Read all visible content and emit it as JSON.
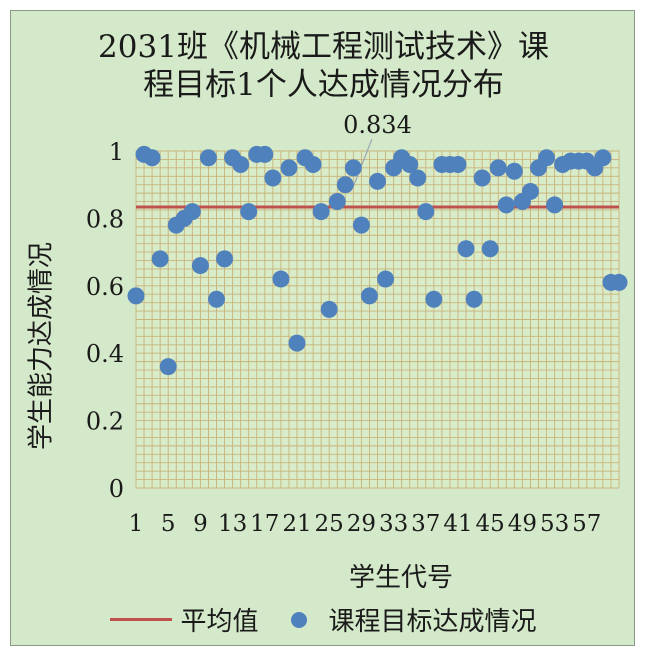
{
  "chart_data": {
    "type": "scatter",
    "title_lines": [
      "2031班《机械工程测试技术》课",
      "程目标1个人达成情况分布"
    ],
    "xlabel": "学生代号",
    "ylabel": "学生能力达成情况",
    "x_tick_labels": [
      "1",
      "5",
      "9",
      "13",
      "17",
      "21",
      "25",
      "29",
      "33",
      "37",
      "41",
      "45",
      "49",
      "53",
      "57"
    ],
    "y_tick_labels": [
      "0",
      "0.2",
      "0.4",
      "0.6",
      "0.8",
      "1"
    ],
    "ylim": [
      0,
      1
    ],
    "xlim": [
      1,
      61
    ],
    "grid": true,
    "legend_position": "bottom",
    "annotation": "0.834",
    "average": {
      "name": "平均值",
      "value": 0.834,
      "color": "#c0504d"
    },
    "series": [
      {
        "name": "课程目标达成情况",
        "color": "#4f81bd",
        "x": [
          1,
          2,
          3,
          4,
          5,
          6,
          7,
          8,
          9,
          10,
          11,
          12,
          13,
          14,
          15,
          16,
          17,
          18,
          19,
          20,
          21,
          22,
          23,
          24,
          25,
          26,
          27,
          28,
          29,
          30,
          31,
          32,
          33,
          34,
          35,
          36,
          37,
          38,
          39,
          40,
          41,
          42,
          43,
          44,
          45,
          46,
          47,
          48,
          49,
          50,
          51,
          52,
          53,
          54,
          55,
          56,
          57,
          58,
          59,
          60,
          61
        ],
        "y": [
          0.57,
          0.99,
          0.98,
          0.68,
          0.36,
          0.78,
          0.8,
          0.82,
          0.66,
          0.98,
          0.56,
          0.68,
          0.98,
          0.96,
          0.82,
          0.99,
          0.99,
          0.92,
          0.62,
          0.95,
          0.43,
          0.98,
          0.96,
          0.82,
          0.53,
          0.85,
          0.9,
          0.95,
          0.78,
          0.57,
          0.91,
          0.62,
          0.95,
          0.98,
          0.96,
          0.92,
          0.82,
          0.56,
          0.96,
          0.96,
          0.96,
          0.71,
          0.56,
          0.92,
          0.71,
          0.95,
          0.84,
          0.94,
          0.85,
          0.88,
          0.95,
          0.98,
          0.84,
          0.96,
          0.97,
          0.97,
          0.97,
          0.95,
          0.98,
          0.61,
          0.61
        ]
      }
    ]
  }
}
